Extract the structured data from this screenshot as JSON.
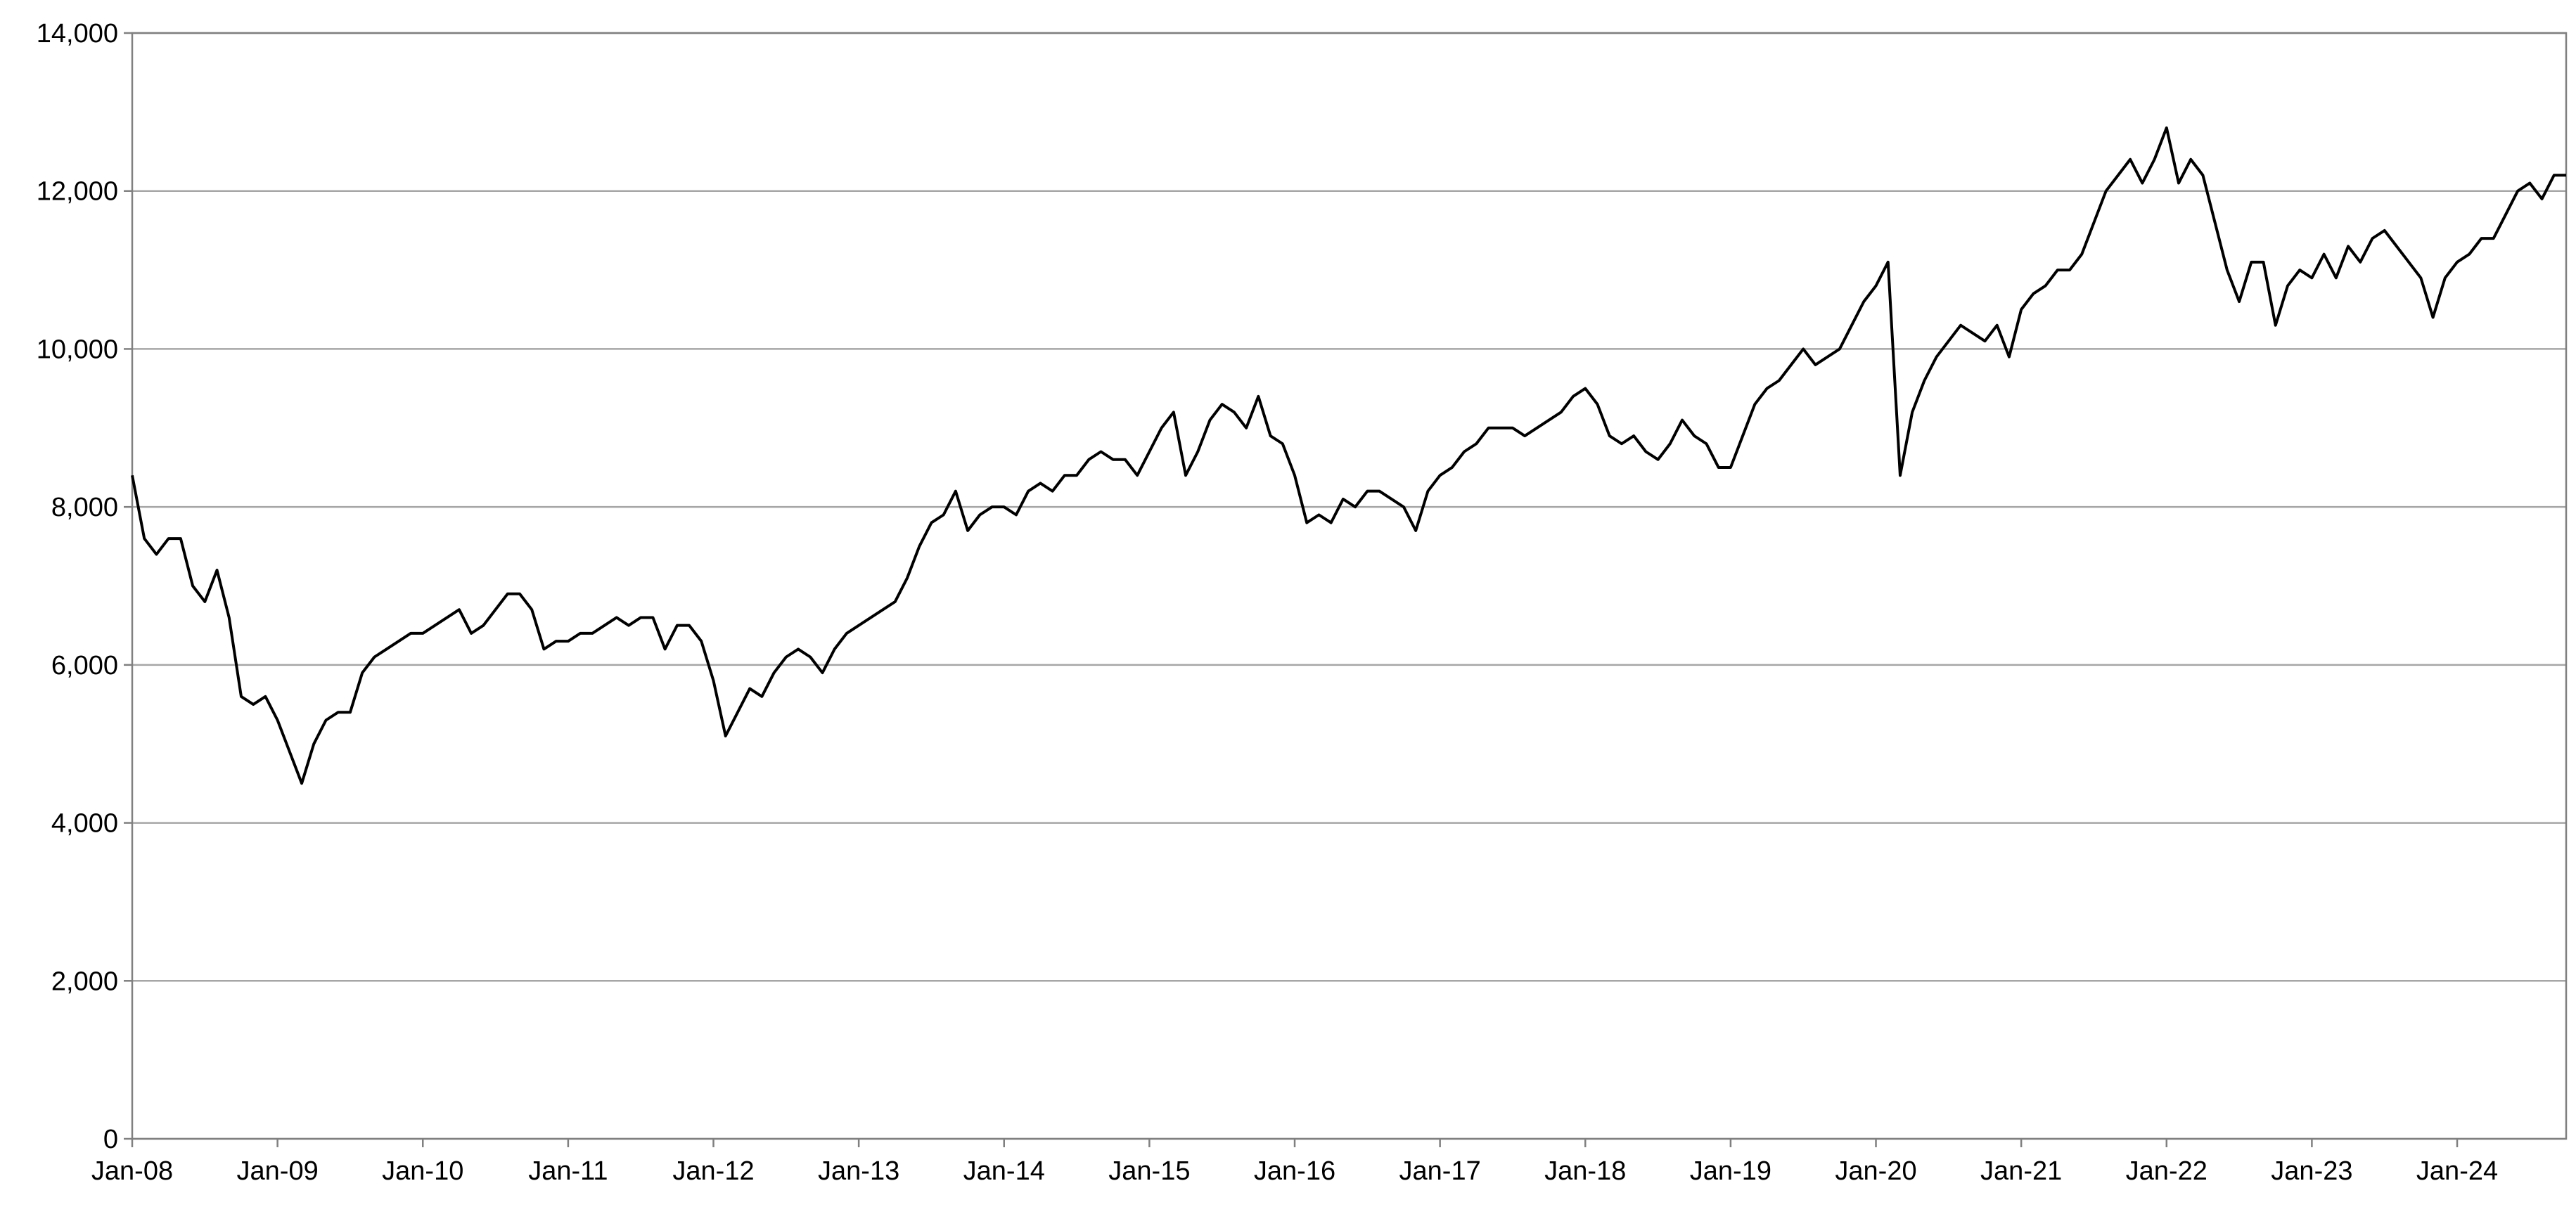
{
  "chart_data": {
    "type": "line",
    "color": "#000000",
    "grid": true,
    "ylim": [
      0,
      14000
    ],
    "yticks": [
      0,
      {
        "value": 2000,
        "label": "2,000"
      },
      {
        "value": 4000,
        "label": "4,000"
      },
      {
        "value": 6000,
        "label": "6,000"
      },
      {
        "value": 8000,
        "label": "8,000"
      },
      {
        "value": 10000,
        "label": "10,000"
      },
      {
        "value": 12000,
        "label": "12,000"
      },
      {
        "value": 14000,
        "label": "14,000"
      }
    ],
    "xlim": [
      "2008-01",
      "2024-10"
    ],
    "xticks": [
      {
        "value": "2008-01",
        "label": "Jan-08"
      },
      {
        "value": "2009-01",
        "label": "Jan-09"
      },
      {
        "value": "2010-01",
        "label": "Jan-10"
      },
      {
        "value": "2011-01",
        "label": "Jan-11"
      },
      {
        "value": "2012-01",
        "label": "Jan-12"
      },
      {
        "value": "2013-01",
        "label": "Jan-13"
      },
      {
        "value": "2014-01",
        "label": "Jan-14"
      },
      {
        "value": "2015-01",
        "label": "Jan-15"
      },
      {
        "value": "2016-01",
        "label": "Jan-16"
      },
      {
        "value": "2017-01",
        "label": "Jan-17"
      },
      {
        "value": "2018-01",
        "label": "Jan-18"
      },
      {
        "value": "2019-01",
        "label": "Jan-19"
      },
      {
        "value": "2020-01",
        "label": "Jan-20"
      },
      {
        "value": "2021-01",
        "label": "Jan-21"
      },
      {
        "value": "2022-01",
        "label": "Jan-22"
      },
      {
        "value": "2023-01",
        "label": "Jan-23"
      },
      {
        "value": "2024-01",
        "label": "Jan-24"
      }
    ],
    "x": [
      "2008-01",
      "2008-02",
      "2008-03",
      "2008-04",
      "2008-05",
      "2008-06",
      "2008-07",
      "2008-08",
      "2008-09",
      "2008-10",
      "2008-11",
      "2008-12",
      "2009-01",
      "2009-02",
      "2009-03",
      "2009-04",
      "2009-05",
      "2009-06",
      "2009-07",
      "2009-08",
      "2009-09",
      "2009-10",
      "2009-11",
      "2009-12",
      "2010-01",
      "2010-02",
      "2010-03",
      "2010-04",
      "2010-05",
      "2010-06",
      "2010-07",
      "2010-08",
      "2010-09",
      "2010-10",
      "2010-11",
      "2010-12",
      "2011-01",
      "2011-02",
      "2011-03",
      "2011-04",
      "2011-05",
      "2011-06",
      "2011-07",
      "2011-08",
      "2011-09",
      "2011-10",
      "2011-11",
      "2011-12",
      "2012-01",
      "2012-02",
      "2012-03",
      "2012-04",
      "2012-05",
      "2012-06",
      "2012-07",
      "2012-08",
      "2012-09",
      "2012-10",
      "2012-11",
      "2012-12",
      "2013-01",
      "2013-02",
      "2013-03",
      "2013-04",
      "2013-05",
      "2013-06",
      "2013-07",
      "2013-08",
      "2013-09",
      "2013-10",
      "2013-11",
      "2013-12",
      "2014-01",
      "2014-02",
      "2014-03",
      "2014-04",
      "2014-05",
      "2014-06",
      "2014-07",
      "2014-08",
      "2014-09",
      "2014-10",
      "2014-11",
      "2014-12",
      "2015-01",
      "2015-02",
      "2015-03",
      "2015-04",
      "2015-05",
      "2015-06",
      "2015-07",
      "2015-08",
      "2015-09",
      "2015-10",
      "2015-11",
      "2015-12",
      "2016-01",
      "2016-02",
      "2016-03",
      "2016-04",
      "2016-05",
      "2016-06",
      "2016-07",
      "2016-08",
      "2016-09",
      "2016-10",
      "2016-11",
      "2016-12",
      "2017-01",
      "2017-02",
      "2017-03",
      "2017-04",
      "2017-05",
      "2017-06",
      "2017-07",
      "2017-08",
      "2017-09",
      "2017-10",
      "2017-11",
      "2017-12",
      "2018-01",
      "2018-02",
      "2018-03",
      "2018-04",
      "2018-05",
      "2018-06",
      "2018-07",
      "2018-08",
      "2018-09",
      "2018-10",
      "2018-11",
      "2018-12",
      "2019-01",
      "2019-02",
      "2019-03",
      "2019-04",
      "2019-05",
      "2019-06",
      "2019-07",
      "2019-08",
      "2019-09",
      "2019-10",
      "2019-11",
      "2019-12",
      "2020-01",
      "2020-02",
      "2020-03",
      "2020-04",
      "2020-05",
      "2020-06",
      "2020-07",
      "2020-08",
      "2020-09",
      "2020-10",
      "2020-11",
      "2020-12",
      "2021-01",
      "2021-02",
      "2021-03",
      "2021-04",
      "2021-05",
      "2021-06",
      "2021-07",
      "2021-08",
      "2021-09",
      "2021-10",
      "2021-11",
      "2021-12",
      "2022-01",
      "2022-02",
      "2022-03",
      "2022-04",
      "2022-05",
      "2022-06",
      "2022-07",
      "2022-08",
      "2022-09",
      "2022-10",
      "2022-11",
      "2022-12",
      "2023-01",
      "2023-02",
      "2023-03",
      "2023-04",
      "2023-05",
      "2023-06",
      "2023-07",
      "2023-08",
      "2023-09",
      "2023-10",
      "2023-11",
      "2023-12",
      "2024-01",
      "2024-02",
      "2024-03",
      "2024-04",
      "2024-05",
      "2024-06",
      "2024-07",
      "2024-08",
      "2024-09",
      "2024-10"
    ],
    "values": [
      8400,
      7600,
      7400,
      7600,
      7600,
      7000,
      6800,
      7200,
      6600,
      5600,
      5500,
      5600,
      5300,
      4900,
      4500,
      5000,
      5300,
      5400,
      5400,
      5900,
      6100,
      6200,
      6300,
      6400,
      6400,
      6500,
      6600,
      6700,
      6400,
      6500,
      6700,
      6900,
      6900,
      6700,
      6200,
      6300,
      6300,
      6400,
      6400,
      6500,
      6600,
      6500,
      6600,
      6600,
      6200,
      6500,
      6500,
      6300,
      5800,
      5100,
      5400,
      5700,
      5600,
      5900,
      6100,
      6200,
      6100,
      5900,
      6200,
      6400,
      6500,
      6600,
      6700,
      6800,
      7100,
      7500,
      7800,
      7900,
      8200,
      7700,
      7900,
      8000,
      8000,
      7900,
      8200,
      8300,
      8200,
      8400,
      8400,
      8600,
      8700,
      8600,
      8600,
      8400,
      8700,
      9000,
      9200,
      8400,
      8700,
      9100,
      9300,
      9200,
      9000,
      9400,
      8900,
      8800,
      8400,
      7800,
      7900,
      7800,
      8100,
      8000,
      8200,
      8200,
      8100,
      8000,
      7700,
      8200,
      8400,
      8500,
      8700,
      8800,
      9000,
      9000,
      9000,
      8900,
      9000,
      9100,
      9200,
      9400,
      9500,
      9300,
      8900,
      8800,
      8900,
      8700,
      8600,
      8800,
      9100,
      8900,
      8800,
      8500,
      8500,
      8900,
      9300,
      9500,
      9600,
      9800,
      10000,
      9800,
      9900,
      10000,
      10300,
      10600,
      10800,
      11100,
      8400,
      9200,
      9600,
      9900,
      10100,
      10300,
      10200,
      10100,
      10300,
      9900,
      10500,
      10700,
      10800,
      11000,
      11000,
      11200,
      11600,
      12000,
      12200,
      12400,
      12100,
      12400,
      12800,
      12100,
      12400,
      12200,
      11600,
      11000,
      10600,
      11100,
      11100,
      10300,
      10800,
      11000,
      10900,
      11200,
      10900,
      11300,
      11100,
      11400,
      11500,
      11300,
      11100,
      10900,
      10400,
      10900,
      11100,
      11200,
      11400,
      11400,
      11700,
      12000,
      12100,
      11900,
      12200,
      12200
    ]
  }
}
